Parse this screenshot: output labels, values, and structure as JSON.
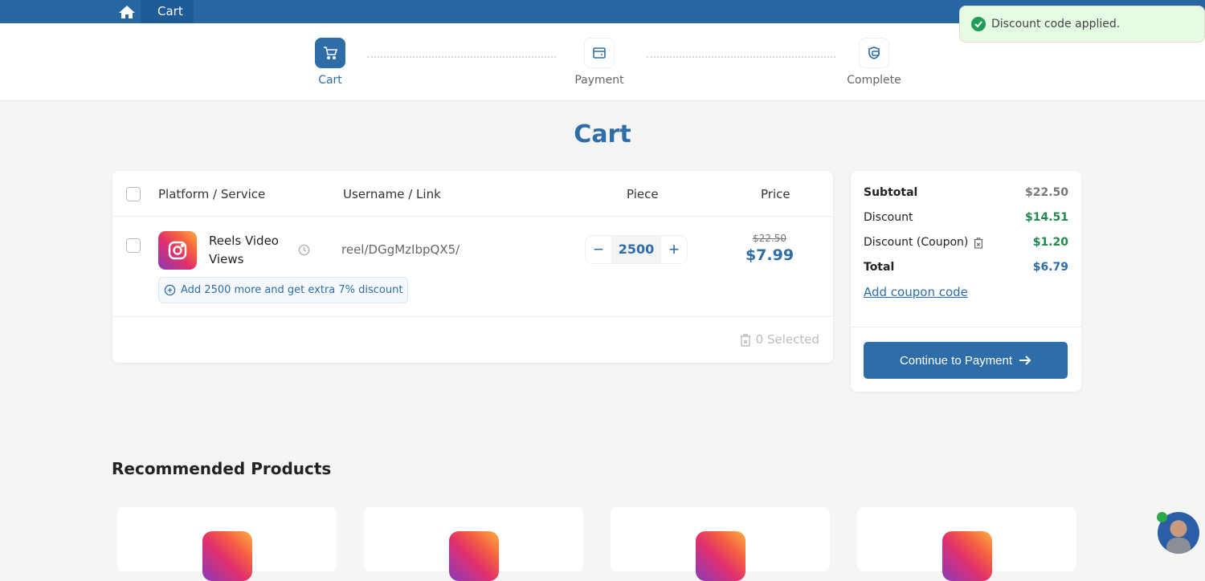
{
  "breadcrumb": {
    "home_icon": "home-icon",
    "current": "Cart"
  },
  "steps": [
    {
      "label": "Cart",
      "icon": "cart-icon",
      "active": true
    },
    {
      "label": "Payment",
      "icon": "card-icon",
      "active": false
    },
    {
      "label": "Complete",
      "icon": "shield-check-icon",
      "active": false
    }
  ],
  "page_title": "Cart",
  "table": {
    "headers": {
      "service": "Platform / Service",
      "link": "Username / Link",
      "piece": "Piece",
      "price": "Price"
    },
    "items": [
      {
        "platform": "Instagram",
        "service": "Reels Video Views",
        "link": "reel/DGgMzIbpQX5/",
        "quantity": "2500",
        "old_price": "$22.50",
        "price": "$7.99",
        "upsell": "Add 2500 more and get extra 7% discount"
      }
    ],
    "selected_label": "0 Selected"
  },
  "summary": {
    "subtotal_label": "Subtotal",
    "subtotal": "$22.50",
    "discount_label": "Discount",
    "discount": "$14.51",
    "coupon_label": "Discount (Coupon)",
    "coupon": "$1.20",
    "total_label": "Total",
    "total": "$6.79",
    "add_coupon": "Add coupon code",
    "continue": "Continue to Payment"
  },
  "toast": "Discount code applied.",
  "recommended_title": "Recommended Products",
  "colors": {
    "primary": "#2e6da8",
    "topbar": "#2566a3",
    "success": "#1f8a4c",
    "toast_bg": "#e5fbe3"
  }
}
